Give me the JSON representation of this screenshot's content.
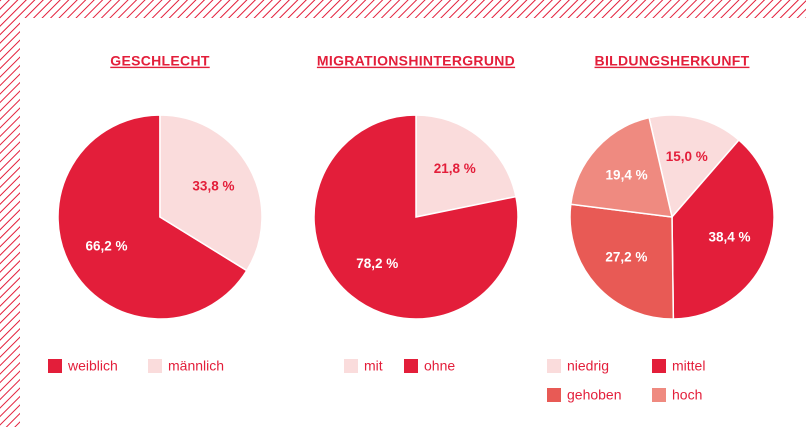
{
  "chart_data": [
    {
      "type": "pie",
      "title": "GESCHLECHT",
      "direction": "counterclockwise",
      "start_angle": 0,
      "categories": [
        "weiblich",
        "männlich"
      ],
      "values": [
        66.2,
        33.8
      ],
      "value_labels": [
        "66,2 %",
        "33,8 %"
      ],
      "colors": [
        "#e31e3a",
        "#fadcdc"
      ],
      "label_colors": [
        "#ffffff",
        "#e31e3a"
      ]
    },
    {
      "type": "pie",
      "title": "MIGRATIONSHINTERGRUND",
      "direction": "clockwise",
      "start_angle": 0,
      "categories": [
        "mit",
        "ohne"
      ],
      "values": [
        21.8,
        78.2
      ],
      "value_labels": [
        "21,8 %",
        "78,2 %"
      ],
      "colors": [
        "#fadcdc",
        "#e31e3a"
      ],
      "label_colors": [
        "#e31e3a",
        "#ffffff"
      ]
    },
    {
      "type": "pie",
      "title": "BILDUNGSHERKUNFT",
      "direction": "clockwise",
      "start_angle": -13,
      "categories": [
        "niedrig",
        "mittel",
        "gehoben",
        "hoch"
      ],
      "values": [
        15.0,
        38.4,
        27.2,
        19.4
      ],
      "value_labels": [
        "15,0 %",
        "38,4 %",
        "27,2 %",
        "19,4 %"
      ],
      "colors": [
        "#fadcdc",
        "#e31e3a",
        "#e85a55",
        "#ef8a80"
      ],
      "label_colors": [
        "#e31e3a",
        "#ffffff",
        "#ffffff",
        "#ffffff"
      ]
    }
  ]
}
